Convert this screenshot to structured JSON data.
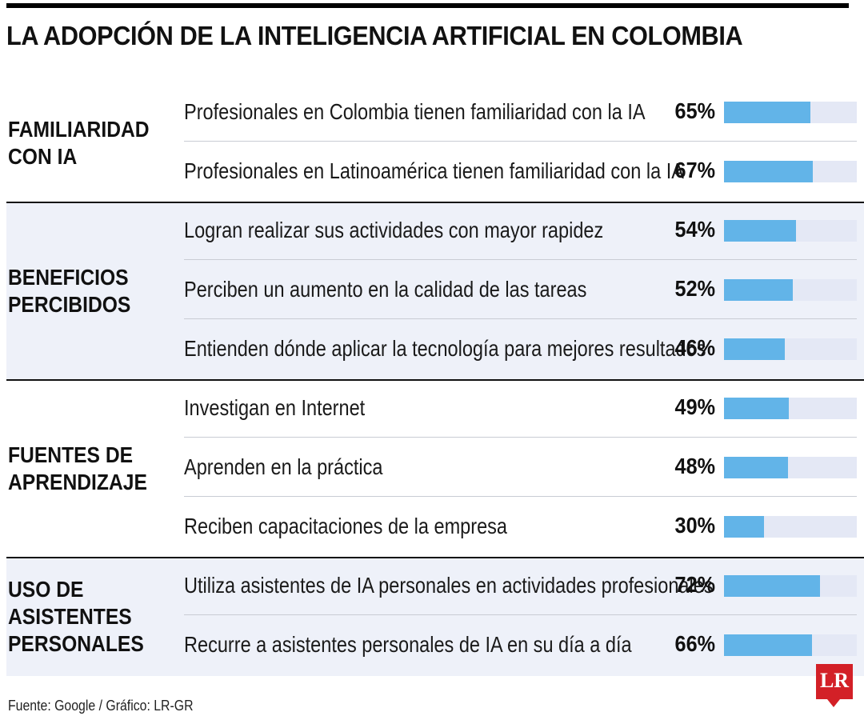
{
  "title": "LA ADOPCIÓN DE LA INTELIGENCIA ARTIFICIAL EN COLOMBIA",
  "source": "Fuente: Google / Gráfico: LR-GR",
  "logo_text": "LR",
  "colors": {
    "bar": "#62b4e8",
    "track": "#e4e8f5",
    "shade": "#eef1f9",
    "logo": "#d32027"
  },
  "chart_data": {
    "type": "bar",
    "orientation": "horizontal",
    "title": "LA ADOPCIÓN DE LA INTELIGENCIA ARTIFICIAL EN COLOMBIA",
    "unit": "%",
    "xlim": [
      0,
      100
    ],
    "groups": [
      {
        "label": "FAMILIARIDAD\nCON IA",
        "items": [
          {
            "label": "Profesionales en Colombia tienen familiaridad con la IA",
            "value": 65,
            "display": "65%"
          },
          {
            "label": "Profesionales en Latinoamérica tienen familiaridad con la IA",
            "value": 67,
            "display": "67%"
          }
        ]
      },
      {
        "label": "BENEFICIOS\nPERCIBIDOS",
        "items": [
          {
            "label": "Logran realizar sus actividades con mayor rapidez",
            "value": 54,
            "display": "54%"
          },
          {
            "label": "Perciben un aumento en la calidad de las tareas",
            "value": 52,
            "display": "52%"
          },
          {
            "label": "Entienden dónde aplicar la tecnología para mejores resultados",
            "value": 46,
            "display": "46%"
          }
        ]
      },
      {
        "label": "FUENTES DE\nAPRENDIZAJE",
        "items": [
          {
            "label": "Investigan en Internet",
            "value": 49,
            "display": "49%"
          },
          {
            "label": "Aprenden en la práctica",
            "value": 48,
            "display": "48%"
          },
          {
            "label": "Reciben capacitaciones de la empresa",
            "value": 30,
            "display": "30%"
          }
        ]
      },
      {
        "label": "USO DE\nASISTENTES\nPERSONALES",
        "items": [
          {
            "label": "Utiliza asistentes de IA personales en actividades profesionales",
            "value": 72,
            "display": "72%"
          },
          {
            "label": "Recurre a asistentes personales de IA en su día a día",
            "value": 66,
            "display": "66%"
          }
        ]
      }
    ]
  }
}
